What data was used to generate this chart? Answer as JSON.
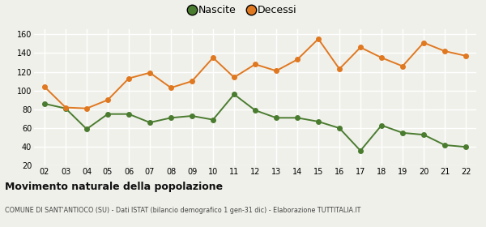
{
  "years": [
    "02",
    "03",
    "04",
    "05",
    "06",
    "07",
    "08",
    "09",
    "10",
    "11",
    "12",
    "13",
    "14",
    "15",
    "16",
    "17",
    "18",
    "19",
    "20",
    "21",
    "22"
  ],
  "nascite": [
    86,
    81,
    59,
    75,
    75,
    66,
    71,
    73,
    69,
    96,
    79,
    71,
    71,
    67,
    60,
    36,
    63,
    55,
    53,
    42,
    40
  ],
  "decessi": [
    104,
    82,
    81,
    90,
    113,
    119,
    103,
    110,
    135,
    114,
    128,
    121,
    133,
    155,
    123,
    146,
    135,
    126,
    151,
    142,
    137
  ],
  "nascite_color": "#4a7c2f",
  "decessi_color": "#e07820",
  "background_color": "#f0f0eb",
  "grid_color": "#ffffff",
  "ylim": [
    20,
    165
  ],
  "yticks": [
    20,
    40,
    60,
    80,
    100,
    120,
    140,
    160
  ],
  "title": "Movimento naturale della popolazione",
  "subtitle": "COMUNE DI SANT'ANTIOCO (SU) - Dati ISTAT (bilancio demografico 1 gen-31 dic) - Elaborazione TUTTITALIA.IT",
  "legend_nascite": "Nascite",
  "legend_decessi": "Decessi",
  "marker_size": 4,
  "line_width": 1.4
}
